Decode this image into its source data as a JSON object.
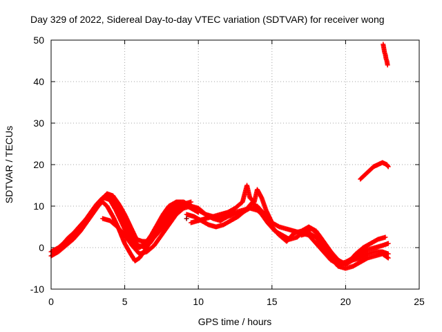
{
  "chart_data": {
    "type": "scatter",
    "title": "Day 329 of 2022, Sidereal Day-to-day VTEC variation (SDTVAR) for receiver wong",
    "xlabel": "GPS time / hours",
    "ylabel": "SDTVAR / TECUs",
    "xlim": [
      0,
      25
    ],
    "ylim": [
      -10,
      50
    ],
    "xticks": [
      0,
      5,
      10,
      15,
      20,
      25
    ],
    "yticks": [
      -10,
      0,
      10,
      20,
      30,
      40,
      50
    ],
    "grid": true,
    "marker": "+",
    "series_color": "#ff0000",
    "outlier_color": "#8b0000",
    "series": [
      {
        "name": "track-1",
        "x": [
          0.0,
          0.5,
          1.0,
          1.5,
          2.0,
          2.5,
          3.0,
          3.3,
          3.5,
          3.8,
          4.2,
          4.6,
          5.0,
          5.4,
          5.7,
          6.0,
          6.4,
          6.8,
          7.2,
          7.6,
          8.0,
          8.5,
          9.0,
          9.5,
          10.0
        ],
        "y": [
          -2,
          -1,
          0.5,
          2,
          4,
          6.5,
          9,
          10.5,
          11,
          10,
          7.5,
          4.5,
          1,
          -1.5,
          -3.2,
          -2.5,
          -0.5,
          2,
          4.5,
          7,
          9,
          10.5,
          10.5,
          9.5,
          8.5
        ]
      },
      {
        "name": "track-2",
        "x": [
          0.0,
          0.5,
          1.0,
          1.5,
          2.0,
          2.5,
          3.0,
          3.3,
          3.6,
          4.0,
          4.4,
          4.8,
          5.2,
          5.6,
          6.0,
          6.4,
          6.8,
          7.2,
          7.6,
          8.0,
          8.5,
          9.0,
          9.5,
          10.0
        ],
        "y": [
          -1,
          0,
          1.5,
          3,
          5,
          7,
          9.5,
          11,
          12,
          11.5,
          9,
          6,
          3,
          0.5,
          0,
          1,
          3,
          5.5,
          8,
          10,
          11,
          11,
          10,
          9
        ]
      },
      {
        "name": "track-3",
        "x": [
          0.2,
          0.7,
          1.2,
          1.7,
          2.2,
          2.7,
          3.1,
          3.5,
          3.9,
          4.3,
          4.7,
          5.1,
          5.5,
          5.9,
          6.3,
          6.7,
          7.1,
          7.5,
          7.9,
          8.4,
          8.9,
          9.4
        ],
        "y": [
          -1,
          0.5,
          2.5,
          4,
          6,
          8.5,
          10.5,
          12,
          12.5,
          11,
          8.5,
          5.5,
          2.5,
          0.5,
          0.2,
          1,
          3,
          5,
          7.5,
          9.5,
          10.5,
          10.5
        ]
      },
      {
        "name": "track-4",
        "x": [
          0.4,
          0.9,
          1.4,
          1.9,
          2.4,
          2.9,
          3.4,
          3.8,
          4.2,
          4.6,
          5.0,
          5.4,
          5.8,
          6.2,
          6.6,
          7.0,
          7.5,
          8.0,
          8.5,
          9.0,
          9.5
        ],
        "y": [
          -0.5,
          1,
          3,
          5,
          7,
          9.5,
          11.5,
          13,
          12.5,
          10.5,
          8,
          5,
          2,
          1.5,
          1.5,
          2.5,
          4.5,
          7,
          9,
          10.5,
          11
        ]
      },
      {
        "name": "track-5",
        "x": [
          3.5,
          4.0,
          4.5,
          5.0,
          5.5,
          6.0,
          6.5,
          7.0,
          7.5,
          8.0,
          8.5,
          9.0,
          9.5,
          10.0,
          10.5,
          11.0,
          11.5,
          12.0,
          12.5,
          13.0,
          13.5,
          14.0,
          14.5,
          15.0,
          15.5,
          16.0
        ],
        "y": [
          7,
          6.5,
          5,
          3,
          0.5,
          -1.5,
          -1,
          0.5,
          3,
          5.5,
          8,
          9.5,
          10,
          9.5,
          8,
          7,
          6.5,
          7.5,
          8.5,
          9,
          9.5,
          9,
          7.5,
          5,
          3,
          2
        ]
      },
      {
        "name": "track-6",
        "x": [
          9.5,
          10.0,
          10.5,
          11.0,
          11.5,
          12.0,
          12.5,
          13.0,
          13.3,
          13.5,
          13.8,
          14.0,
          14.3,
          14.6,
          15.0,
          15.5,
          16.0,
          16.5,
          17.0,
          17.5,
          18.0,
          18.5,
          19.0,
          19.5,
          20.0,
          20.5,
          21.0,
          21.5,
          22.0,
          22.5,
          22.9
        ],
        "y": [
          6,
          6.5,
          7,
          7.5,
          8,
          8.5,
          9.5,
          11,
          15,
          12,
          11,
          14,
          12,
          9,
          6,
          5,
          4.5,
          4,
          3.5,
          3,
          1,
          -1,
          -3,
          -4,
          -3.5,
          -2.5,
          -1.5,
          -0.5,
          0,
          0.5,
          1
        ]
      },
      {
        "name": "track-7",
        "x": [
          10.0,
          10.5,
          11.0,
          11.5,
          12.0,
          12.5,
          13.0,
          13.5,
          14.0,
          14.5,
          15.0,
          15.5,
          16.0,
          16.5,
          17.0,
          17.5,
          18.0,
          18.5,
          19.0,
          19.5,
          20.0,
          20.5,
          21.0,
          21.5,
          22.0,
          22.5,
          22.9
        ],
        "y": [
          9,
          8,
          7.5,
          7,
          7.5,
          8,
          8.5,
          9.5,
          10,
          8,
          5,
          3,
          1.5,
          3.5,
          4,
          5,
          4,
          1.5,
          -1,
          -3,
          -4,
          -3,
          -2.5,
          -1.5,
          -1,
          -1,
          -1.5
        ]
      },
      {
        "name": "track-8",
        "x": [
          9.2,
          9.7,
          10.2,
          10.7,
          11.2,
          11.7,
          12.2,
          12.7,
          13.2,
          13.7,
          14.2,
          14.7,
          15.2,
          15.7,
          16.2,
          16.7,
          17.2,
          17.7,
          18.2,
          18.7,
          19.2,
          19.7,
          20.2,
          20.7,
          21.2,
          21.7,
          22.2,
          22.7
        ],
        "y": [
          8,
          7.5,
          6.5,
          5.5,
          5,
          5.5,
          6.5,
          7.5,
          9,
          11,
          8.5,
          6,
          4,
          3,
          2,
          2.5,
          4,
          4.5,
          3,
          0.5,
          -2,
          -4,
          -3.5,
          -1.5,
          0,
          1,
          2,
          2.5
        ]
      },
      {
        "name": "track-9",
        "x": [
          17.0,
          17.5,
          18.0,
          18.5,
          19.0,
          19.5,
          20.0,
          20.5,
          21.0,
          21.5,
          22.0,
          22.5,
          22.9
        ],
        "y": [
          3,
          3.5,
          2.5,
          0,
          -2.5,
          -4.5,
          -5,
          -4.5,
          -3.5,
          -2.5,
          -2,
          -1.5,
          -2.5
        ]
      },
      {
        "name": "track-10",
        "x": [
          21.0,
          21.3,
          21.6,
          21.9,
          22.2,
          22.5,
          22.8,
          22.9
        ],
        "y": [
          16.5,
          17.5,
          18.5,
          19.5,
          20,
          20.5,
          20,
          19.5
        ]
      },
      {
        "name": "track-11",
        "x": [
          22.55,
          22.6,
          22.65,
          22.7,
          22.75,
          22.8,
          22.85
        ],
        "y": [
          49,
          48,
          47,
          46.5,
          45.5,
          45,
          44
        ]
      },
      {
        "name": "outlier",
        "x": [
          9.2
        ],
        "y": [
          7
        ],
        "color": "#8b0000"
      }
    ]
  }
}
